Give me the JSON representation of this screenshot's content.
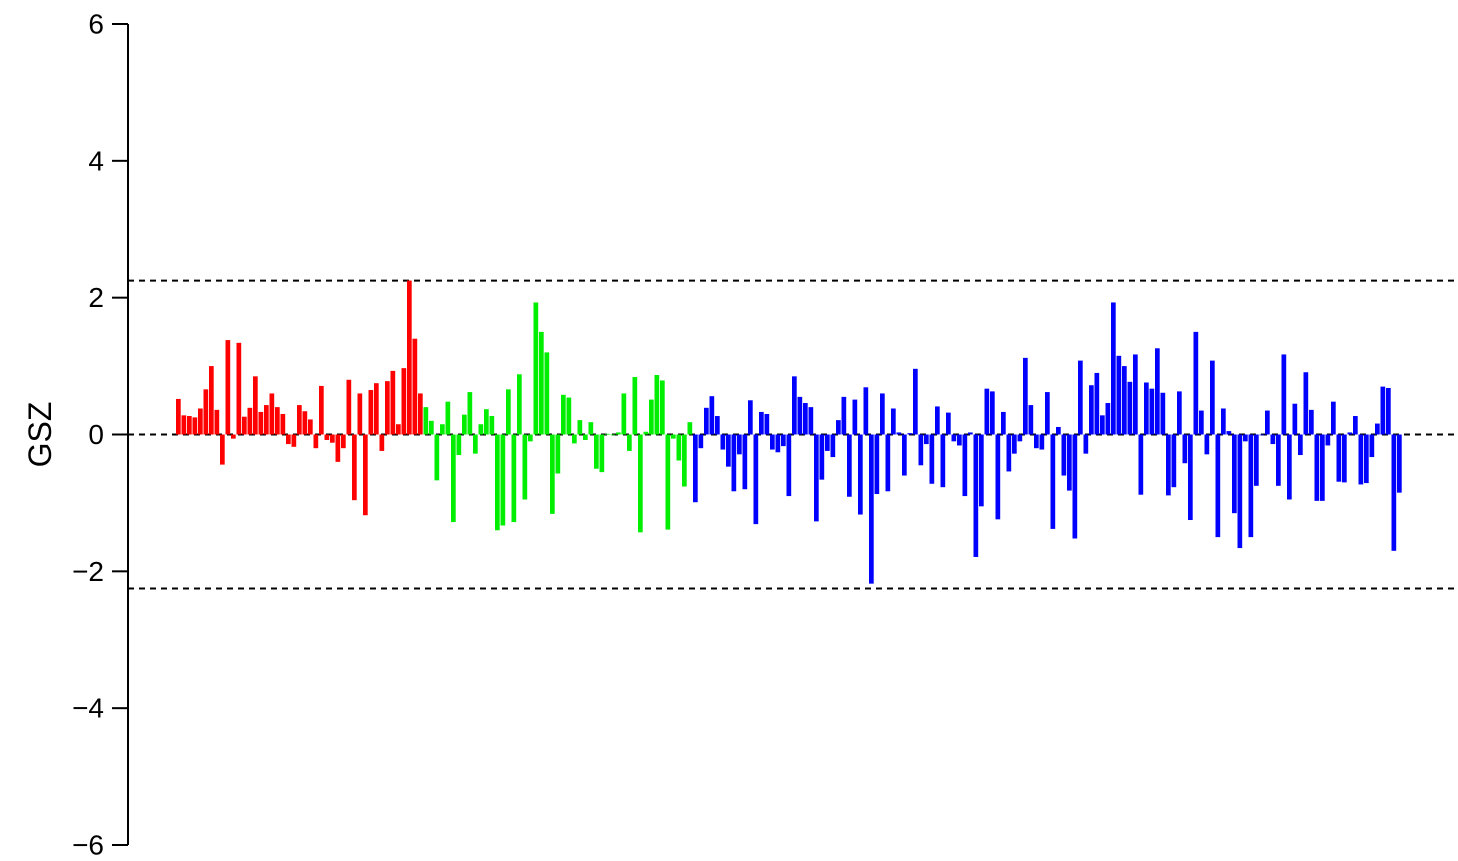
{
  "chart_data": {
    "type": "bar",
    "title": "",
    "xlabel": "",
    "ylabel": "GSZ",
    "ylim": [
      -6,
      6
    ],
    "yticks": [
      6,
      4,
      2,
      0,
      -2,
      -4,
      -6
    ],
    "ytick_labels": [
      "6",
      "4",
      "2",
      "0",
      "−2",
      "−4",
      "−6"
    ],
    "grid": false,
    "reference_lines": [
      2.25,
      0,
      -2.25
    ],
    "colors": {
      "group1": "#ff0000",
      "group2": "#00ee00",
      "group3": "#0000ff",
      "axis": "#000000"
    },
    "series": [
      {
        "color_key": "group1",
        "values": [
          0.52,
          0.28,
          0.27,
          0.25,
          0.38,
          0.66,
          1.0,
          0.36,
          -0.44,
          1.38,
          -0.06,
          1.34,
          0.26,
          0.39,
          0.85,
          0.33,
          0.43,
          0.6,
          0.4,
          0.3,
          -0.14,
          -0.18,
          0.43,
          0.34,
          0.22,
          -0.2,
          0.71,
          -0.08,
          -0.12,
          -0.4,
          -0.2,
          0.8,
          -0.96,
          0.6,
          -1.18,
          0.65,
          0.75,
          -0.24,
          0.78,
          0.93,
          0.15,
          0.97,
          2.25,
          1.4,
          0.6
        ]
      },
      {
        "color_key": "group2",
        "values": [
          0.4,
          0.2,
          -0.67,
          0.15,
          0.48,
          -1.28,
          -0.3,
          0.29,
          0.62,
          -0.28,
          0.15,
          0.37,
          0.27,
          -1.4,
          -1.33,
          0.66,
          -1.28,
          0.88,
          -0.95,
          -0.1,
          1.93,
          1.5,
          1.2,
          -1.16,
          -0.57,
          0.58,
          0.54,
          -0.13,
          0.21,
          -0.08,
          0.18,
          -0.5,
          -0.55,
          0.01,
          0.0,
          0.03,
          0.6,
          -0.24,
          0.84,
          -1.43,
          0.04,
          0.51,
          0.87,
          0.79,
          -1.39,
          -0.06,
          -0.38,
          -0.76,
          0.18
        ]
      },
      {
        "color_key": "group3",
        "values": [
          -0.99,
          -0.2,
          0.39,
          0.56,
          0.27,
          -0.22,
          -0.47,
          -0.83,
          -0.29,
          -0.8,
          0.5,
          -1.31,
          0.33,
          0.3,
          -0.22,
          -0.26,
          -0.17,
          -0.9,
          0.85,
          0.55,
          0.46,
          0.4,
          -1.27,
          -0.66,
          -0.24,
          -0.33,
          0.21,
          0.55,
          -0.91,
          0.51,
          -1.17,
          0.69,
          -2.18,
          -0.87,
          0.6,
          -0.83,
          0.38,
          0.03,
          -0.6,
          0.02,
          0.96,
          -0.45,
          -0.14,
          -0.72,
          0.41,
          -0.77,
          0.32,
          -0.1,
          -0.16,
          -0.9,
          0.03,
          -1.79,
          -1.05,
          0.67,
          0.63,
          -1.24,
          0.33,
          -0.54,
          -0.28,
          -0.1,
          1.12,
          0.43,
          -0.2,
          -0.22,
          0.62,
          -1.38,
          0.11,
          -0.6,
          -0.82,
          -1.52,
          1.08,
          -0.28,
          0.72,
          0.9,
          0.28,
          0.46,
          1.93,
          1.15,
          1.0,
          0.77,
          1.17,
          -0.88,
          0.76,
          0.67,
          1.26,
          0.61,
          -0.89,
          -0.77,
          0.63,
          -0.42,
          -1.25,
          1.5,
          0.35,
          -0.29,
          1.08,
          -1.5,
          0.38,
          0.05,
          -1.15,
          -1.66,
          -0.1,
          -1.5,
          -0.75,
          0.0,
          0.35,
          -0.14,
          -0.75,
          1.17,
          -0.95,
          0.45,
          -0.3,
          0.91,
          0.36,
          -0.97,
          -0.97,
          -0.16,
          0.48,
          -0.69,
          -0.7,
          0.03,
          0.27,
          -0.73,
          -0.71,
          -0.33,
          0.16,
          0.7,
          0.68,
          -1.7,
          -0.85
        ]
      }
    ]
  }
}
